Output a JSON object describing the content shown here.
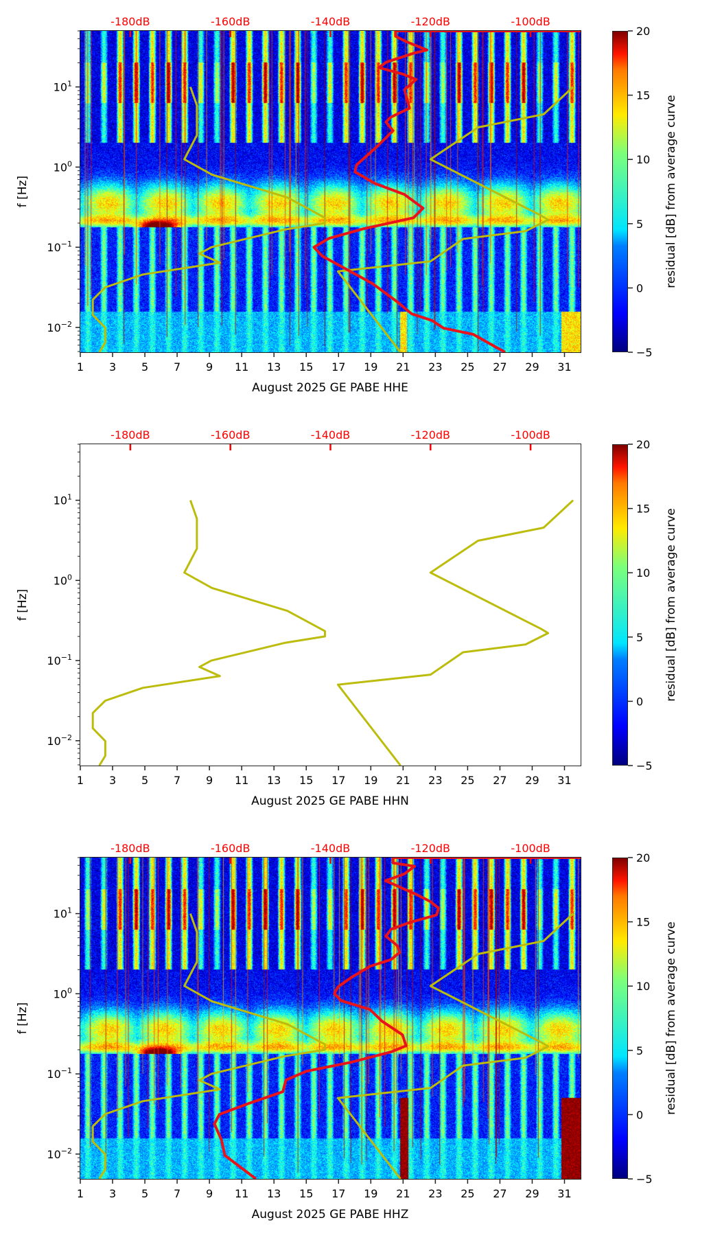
{
  "figure": {
    "colorbar": {
      "label": "residual [dB] from average curve",
      "ticks": [
        "20",
        "15",
        "10",
        "5",
        "0",
        "−5"
      ],
      "values": [
        20,
        15,
        10,
        5,
        0,
        -5
      ],
      "range": [
        -5,
        20
      ],
      "colormap": "jet"
    },
    "ylabel": "f [Hz]",
    "yticks": [
      "10^1",
      "10^0",
      "10^-1",
      "10^-2"
    ],
    "xticks": [
      "1",
      "3",
      "5",
      "7",
      "9",
      "11",
      "13",
      "15",
      "17",
      "19",
      "21",
      "23",
      "25",
      "27",
      "29",
      "31"
    ],
    "db_ticks": [
      "-180dB",
      "-160dB",
      "-140dB",
      "-120dB",
      "-100dB"
    ],
    "colors": {
      "db_axis": "#ff0000",
      "median_curve": "#e8141c",
      "noise_model": "#bcbc0d"
    }
  },
  "chart_data": [
    {
      "type": "heatmap",
      "channel": "HHE",
      "xlabel": "August 2025 GE PABE  HHE",
      "ylabel": "f [Hz]",
      "xlim": [
        1,
        32
      ],
      "ylim_hz": [
        0.0049,
        50
      ],
      "yscale": "log",
      "db_axis_range": [
        -190,
        -90
      ],
      "has_spectrogram": true,
      "median_psd": {
        "freq_hz": [
          50,
          50,
          42.9,
          36.6,
          28.9,
          26.3,
          20.3,
          17.4,
          14.5,
          12.4,
          9.25,
          5.43,
          4.21,
          3.66,
          2.84,
          1.8,
          1.06,
          0.871,
          0.624,
          0.455,
          0.307,
          0.233,
          0.17,
          0.129,
          0.1,
          0.0774,
          0.0523,
          0.0352,
          0.0207,
          0.0148,
          0.0122,
          0.0098,
          0.0082,
          0.0049
        ],
        "db": [
          -90,
          -127.0,
          -127.0,
          -124.8,
          -120.7,
          -123.4,
          -128.9,
          -130.3,
          -125.6,
          -122.9,
          -125.2,
          -124.2,
          -127.9,
          -128.9,
          -127.5,
          -130.7,
          -134.8,
          -135.1,
          -131.1,
          -125.2,
          -121.5,
          -123.4,
          -133.4,
          -140.3,
          -143.3,
          -141.6,
          -136.6,
          -131.6,
          -126.6,
          -123.8,
          -119.7,
          -117.4,
          -111.5,
          -105.1
        ]
      }
    },
    {
      "type": "line",
      "channel": "HHN",
      "xlabel": "August 2025 GE PABE  HHN",
      "ylabel": "f [Hz]",
      "xlim": [
        1,
        32
      ],
      "ylim_hz": [
        0.0049,
        50
      ],
      "yscale": "log",
      "db_axis_range": [
        -190,
        -90
      ],
      "has_spectrogram": false,
      "median_psd": null
    },
    {
      "type": "heatmap",
      "channel": "HHZ",
      "xlabel": "August 2025 GE PABE  HHZ",
      "ylabel": "f [Hz]",
      "xlim": [
        1,
        32
      ],
      "ylim_hz": [
        0.0049,
        50
      ],
      "yscale": "log",
      "db_axis_range": [
        -190,
        -90
      ],
      "has_spectrogram": true,
      "median_psd": {
        "freq_hz": [
          50,
          50,
          42.9,
          38.9,
          31.3,
          25.7,
          22.0,
          17.4,
          14.2,
          11.7,
          9.6,
          7.74,
          6.36,
          5.22,
          3.96,
          3.26,
          2.67,
          2.2,
          1.6,
          1.22,
          1.0,
          0.822,
          0.636,
          0.455,
          0.307,
          0.224,
          0.188,
          0.14,
          0.108,
          0.0838,
          0.06,
          0.0429,
          0.0313,
          0.0238,
          0.0151,
          0.0096,
          0.0049
        ],
        "db": [
          -90,
          -127.5,
          -127.5,
          -123.2,
          -125.2,
          -129.0,
          -126.6,
          -122.9,
          -120.1,
          -118.4,
          -118.8,
          -124.2,
          -127.9,
          -128.9,
          -126.6,
          -126.2,
          -127.9,
          -132.1,
          -135.8,
          -138.5,
          -139.2,
          -137.9,
          -132.1,
          -129.7,
          -125.6,
          -124.9,
          -127.9,
          -135.8,
          -144.8,
          -148.9,
          -149.5,
          -156.3,
          -162.2,
          -163.2,
          -161.8,
          -161.1,
          -154.9
        ]
      }
    }
  ],
  "noise_models": {
    "nlnm": {
      "freq_hz": [
        10,
        5.88,
        2.5,
        1.25,
        0.806,
        0.417,
        0.233,
        0.2,
        0.167,
        0.1,
        0.0833,
        0.0641,
        0.0457,
        0.0316,
        0.0222,
        0.0143,
        0.0099,
        0.00649,
        0.0049
      ],
      "db": [
        -168.0,
        -166.7,
        -166.7,
        -169.2,
        -163.7,
        -148.6,
        -141.1,
        -141.1,
        -149.0,
        -163.8,
        -166.2,
        -162.1,
        -177.5,
        -185.0,
        -187.5,
        -187.5,
        -185.0,
        -185.0,
        -186.2
      ]
    },
    "nhnm": {
      "freq_hz": [
        10,
        4.55,
        3.13,
        1.25,
        0.25,
        0.22,
        0.159,
        0.127,
        0.0667,
        0.05,
        0.0049
      ],
      "db": [
        -91.5,
        -97.4,
        -110.5,
        -120.0,
        -98.0,
        -96.5,
        -101.0,
        -113.5,
        -120.0,
        -138.5,
        -126.0
      ]
    }
  }
}
